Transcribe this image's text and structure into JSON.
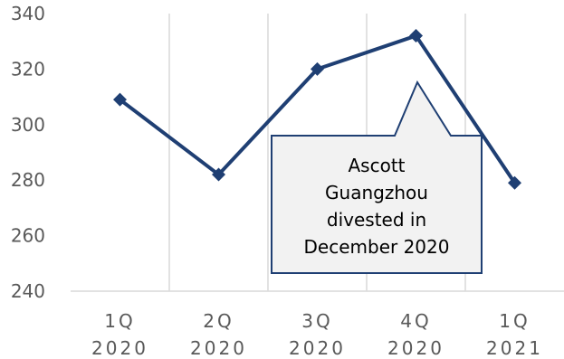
{
  "chart_data": {
    "type": "line",
    "title": "",
    "xlabel": "",
    "ylabel": "",
    "categories": [
      [
        "1Q",
        "2020"
      ],
      [
        "2Q",
        "2020"
      ],
      [
        "3Q",
        "2020"
      ],
      [
        "4Q",
        "2020"
      ],
      [
        "1Q",
        "2021"
      ]
    ],
    "series": [
      {
        "values": [
          309,
          282,
          320,
          332,
          279
        ],
        "color": "#1f3f73"
      }
    ],
    "ylim": [
      240,
      340
    ],
    "yticks": [
      240,
      260,
      280,
      300,
      320,
      340
    ],
    "grid": "vertical",
    "annotation": {
      "lines": [
        "Ascott",
        "Guangzhou",
        "divested in",
        "December 2020"
      ],
      "points_to_category": 3,
      "border_color": "#1f3f73",
      "fill_color": "#f2f2f2"
    }
  }
}
